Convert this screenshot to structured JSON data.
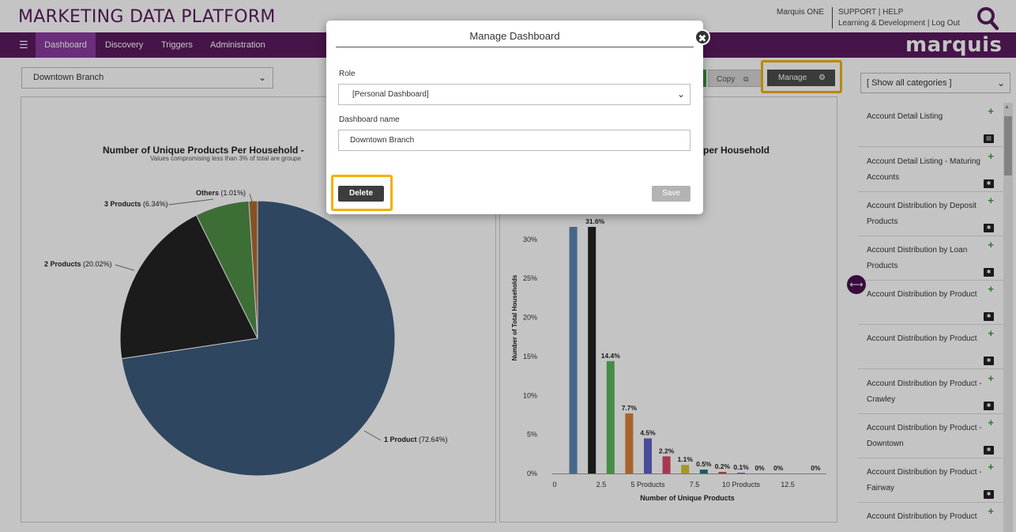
{
  "header": {
    "brand": "MARKETING DATA PLATFORM",
    "user": "Marquis ONE",
    "support": "SUPPORT | HELP",
    "learning": "Learning & Development | Log Out",
    "logo_text": "marquis"
  },
  "nav": {
    "items": [
      "Dashboard",
      "Discovery",
      "Triggers",
      "Administration"
    ]
  },
  "toolbar": {
    "branch_selected": "Downtown Branch",
    "copy_label": "Copy",
    "manage_label": "Manage",
    "category_selected": "[ Show all categories ]"
  },
  "pie_chart": {
    "title": "Number of Unique Products Per Household -",
    "subtitle": "Values compromising less than 3% of total are groupe",
    "labels": [
      "Others",
      "3 Products",
      "2 Products",
      "1 Product"
    ],
    "pcts": [
      "(1.01%)",
      "(6.34%)",
      "(20.02%)",
      "(72.64%)"
    ]
  },
  "bar_chart_title_fragment": "per Household",
  "chart_data": [
    {
      "type": "pie",
      "title": "Number of Unique Products Per Household -",
      "subtitle": "Values compromising less than 3% of total are groupe",
      "slices": [
        {
          "label": "1 Product",
          "value": 72.64,
          "color": "#3e5c7e"
        },
        {
          "label": "2 Products",
          "value": 20.02,
          "color": "#242424"
        },
        {
          "label": "3 Products",
          "value": 6.34,
          "color": "#4f8f47"
        },
        {
          "label": "Others",
          "value": 1.01,
          "color": "#b06a30"
        }
      ]
    },
    {
      "type": "bar",
      "title": "per Household",
      "xlabel": "Number of Unique Products",
      "ylabel": "Number of Total Households",
      "ylim": [
        0,
        31.6
      ],
      "yticks": [
        "0%",
        "5%",
        "10%",
        "15%",
        "20%",
        "25%",
        "30%"
      ],
      "xticks": [
        "0",
        "2.5",
        "5 Products",
        "7.5",
        "10 Products",
        "12.5"
      ],
      "x": [
        1,
        2,
        3,
        4,
        5,
        6,
        7,
        8,
        9,
        10,
        11,
        12,
        14
      ],
      "values": [
        31.6,
        31.6,
        14.4,
        7.7,
        4.5,
        2.2,
        1.1,
        0.5,
        0.2,
        0.1,
        0,
        0,
        0
      ],
      "labels": [
        "",
        "31.6%",
        "14.4%",
        "7.7%",
        "4.5%",
        "2.2%",
        "1.1%",
        "0.5%",
        "0.2%",
        "0.1%",
        "0%",
        "0%",
        "0%"
      ],
      "colors": [
        "#5b86b5",
        "#222222",
        "#5cb85c",
        "#d9823b",
        "#5e62c9",
        "#d94b6a",
        "#d4c43a",
        "#1f7a7a",
        "#c0504d",
        "#9b59b6",
        "#888888",
        "#888888",
        "#888888"
      ]
    }
  ],
  "sidebar": {
    "reports": [
      "Account Detail Listing",
      "Account Detail Listing - Maturing Accounts",
      "Account Distribution by Deposit Products",
      "Account Distribution by Loan Products",
      "Account Distribution by Product",
      "Account Distribution by Product",
      "Account Distribution by Product - Crawley",
      "Account Distribution by Product - Downtown",
      "Account Distribution by Product - Fairway",
      "Account Distribution by Product"
    ]
  },
  "modal": {
    "title": "Manage Dashboard",
    "role_label": "Role",
    "role_value": "[Personal Dashboard]",
    "name_label": "Dashboard name",
    "name_value": "Downtown Branch",
    "delete_label": "Delete",
    "save_label": "Save"
  }
}
